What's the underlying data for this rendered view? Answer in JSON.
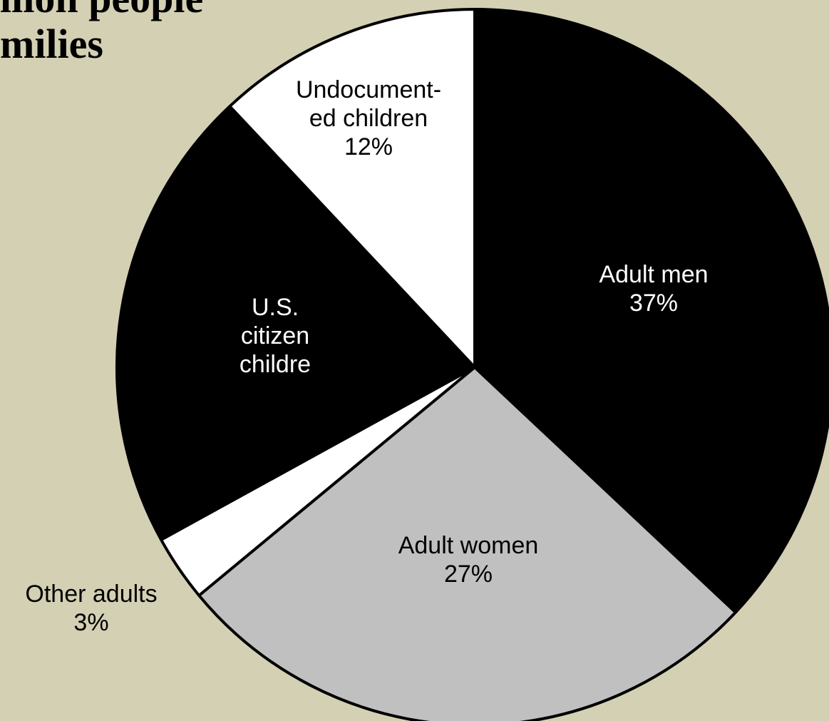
{
  "slide": {
    "title_lines": [
      "llion people",
      "milies"
    ]
  },
  "chart_data": {
    "type": "pie",
    "colors": {
      "background": "#d4d0b4",
      "outline": "#000000"
    },
    "slices": [
      {
        "label_lines": [
          "Adult men",
          "37%"
        ],
        "value": 37,
        "fill": "#000000",
        "text_color": "#ffffff"
      },
      {
        "label_lines": [
          "Adult women",
          "27%"
        ],
        "value": 27,
        "fill": "#c0c0c0",
        "text_color": "#000000"
      },
      {
        "label_lines": [
          "Other adults",
          "3%"
        ],
        "value": 3,
        "fill": "#ffffff",
        "text_color": "#000000"
      },
      {
        "label_lines": [
          "U.S.",
          "citizen",
          "childre"
        ],
        "value": 21,
        "fill": "#000000",
        "text_color": "#ffffff"
      },
      {
        "label_lines": [
          "Undocument-",
          "ed children",
          "12%"
        ],
        "value": 12,
        "fill": "#ffffff",
        "text_color": "#000000"
      }
    ]
  }
}
